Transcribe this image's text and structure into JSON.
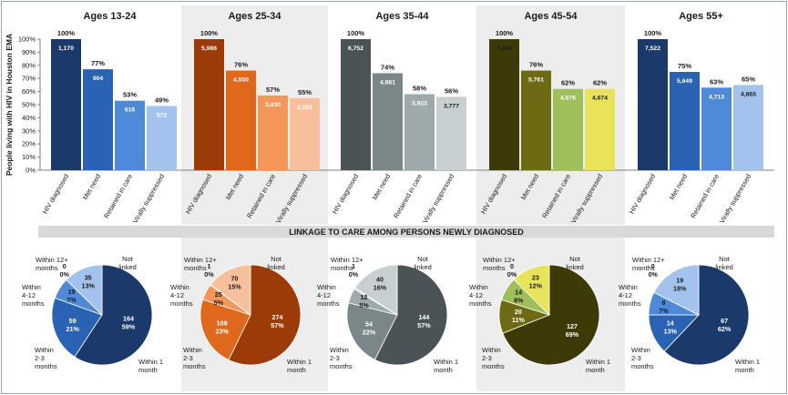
{
  "chart_data": {
    "type": "bar",
    "ylabel": "People living with HIV in Houston EMA",
    "ylim": [
      0,
      100
    ],
    "y_ticks": [
      "0%",
      "10%",
      "20%",
      "30%",
      "40%",
      "50%",
      "60%",
      "70%",
      "80%",
      "90%",
      "100%"
    ],
    "categories": [
      "HIV diagnosed",
      "Met need",
      "Retained in care",
      "Virally suppressed"
    ],
    "groups": [
      {
        "title": "Ages 13-24",
        "shaded": false,
        "colors": [
          "#1b3a6b",
          "#2a62b4",
          "#4f8ad8",
          "#a3c3ee"
        ],
        "percents": [
          100,
          77,
          53,
          49
        ],
        "percent_labels": [
          "100%",
          "77%",
          "53%",
          "49%"
        ],
        "counts": [
          "1,170",
          "904",
          "616",
          "572"
        ],
        "count_colors": [
          "#ffffff",
          "#ffffff",
          "#ffffff",
          "#ffffff"
        ]
      },
      {
        "title": "Ages 25-34",
        "shaded": true,
        "colors": [
          "#9c3a08",
          "#e0681c",
          "#f2965a",
          "#f7bf9c"
        ],
        "percents": [
          100,
          76,
          57,
          55
        ],
        "percent_labels": [
          "100%",
          "76%",
          "57%",
          "55%"
        ],
        "counts": [
          "5,986",
          "4,550",
          "3,430",
          "3,281"
        ],
        "count_colors": [
          "#ffffff",
          "#ffffff",
          "#ffffff",
          "#ffffff"
        ]
      },
      {
        "title": "Ages 35-44",
        "shaded": false,
        "colors": [
          "#4a5456",
          "#7a8688",
          "#9ea9ab",
          "#c8cfd0"
        ],
        "percents": [
          100,
          74,
          58,
          56
        ],
        "percent_labels": [
          "100%",
          "74%",
          "58%",
          "56%"
        ],
        "counts": [
          "6,752",
          "4,981",
          "3,923",
          "3,777"
        ],
        "count_colors": [
          "#ffffff",
          "#ffffff",
          "#ffffff",
          "#1a1a1a"
        ]
      },
      {
        "title": "Ages 45-54",
        "shaded": true,
        "colors": [
          "#3e3a08",
          "#6e6a14",
          "#9fbf5a",
          "#e8e35a"
        ],
        "percents": [
          100,
          76,
          62,
          62
        ],
        "percent_labels": [
          "100%",
          "76%",
          "62%",
          "62%"
        ],
        "counts": [
          "7,594",
          "5,761",
          "4,676",
          "4,674"
        ],
        "count_colors": [
          "#1a1a1a",
          "#ffffff",
          "#ffffff",
          "#1a1a1a"
        ]
      },
      {
        "title": "Ages 55+",
        "shaded": false,
        "colors": [
          "#1b3a6b",
          "#2a62b4",
          "#4f8ad8",
          "#a3c3ee"
        ],
        "percents": [
          100,
          75,
          63,
          65
        ],
        "percent_labels": [
          "100%",
          "75%",
          "63%",
          "65%"
        ],
        "counts": [
          "7,522",
          "5,649",
          "4,713",
          "4,865"
        ],
        "count_colors": [
          "#ffffff",
          "#ffffff",
          "#ffffff",
          "#1a1a1a"
        ]
      }
    ],
    "linkage": {
      "type": "pie",
      "banner": "LINKAGE TO CARE AMONG PERSONS NEWLY DIAGNOSED",
      "categories": [
        "Within 1 month",
        "Within 2-3 months",
        "Within 4-12 months",
        "Within 12+ months",
        "Not linked"
      ],
      "pies": [
        {
          "values": [
            164,
            59,
            19,
            0,
            35
          ],
          "percents": [
            "59%",
            "21%",
            "7%",
            "0%",
            "13%"
          ],
          "colors": [
            "#1b3a6b",
            "#2a62b4",
            "#4f8ad8",
            "#7aa8e6",
            "#a3c3ee"
          ]
        },
        {
          "values": [
            274,
            109,
            25,
            1,
            70
          ],
          "percents": [
            "57%",
            "23%",
            "5%",
            "0%",
            "15%"
          ],
          "colors": [
            "#9c3a08",
            "#e0681c",
            "#f2965a",
            "#f5ac7c",
            "#f7bf9c"
          ]
        },
        {
          "values": [
            144,
            54,
            12,
            1,
            40
          ],
          "percents": [
            "57%",
            "22%",
            "5%",
            "0%",
            "16%"
          ],
          "colors": [
            "#4a5456",
            "#7a8688",
            "#9ea9ab",
            "#b3bcbe",
            "#c8cfd0"
          ]
        },
        {
          "values": [
            127,
            20,
            14,
            0,
            23
          ],
          "percents": [
            "69%",
            "11%",
            "8%",
            "0%",
            "12%"
          ],
          "colors": [
            "#3e3a08",
            "#6e6a14",
            "#9fbf5a",
            "#c4d45a",
            "#e8e35a"
          ]
        },
        {
          "values": [
            67,
            14,
            8,
            0,
            19
          ],
          "percents": [
            "62%",
            "13%",
            "7%",
            "0%",
            "18%"
          ],
          "colors": [
            "#1b3a6b",
            "#2a62b4",
            "#4f8ad8",
            "#7aa8e6",
            "#a3c3ee"
          ]
        }
      ],
      "labels": {
        "within_1": [
          "Within 1",
          "month"
        ],
        "within_2_3": [
          "Within",
          "2-3",
          "months"
        ],
        "within_4_12": [
          "Within",
          "4-12",
          "months"
        ],
        "within_12": [
          "Within 12+",
          "months"
        ],
        "not_linked": [
          "Not",
          "linked"
        ]
      }
    }
  }
}
